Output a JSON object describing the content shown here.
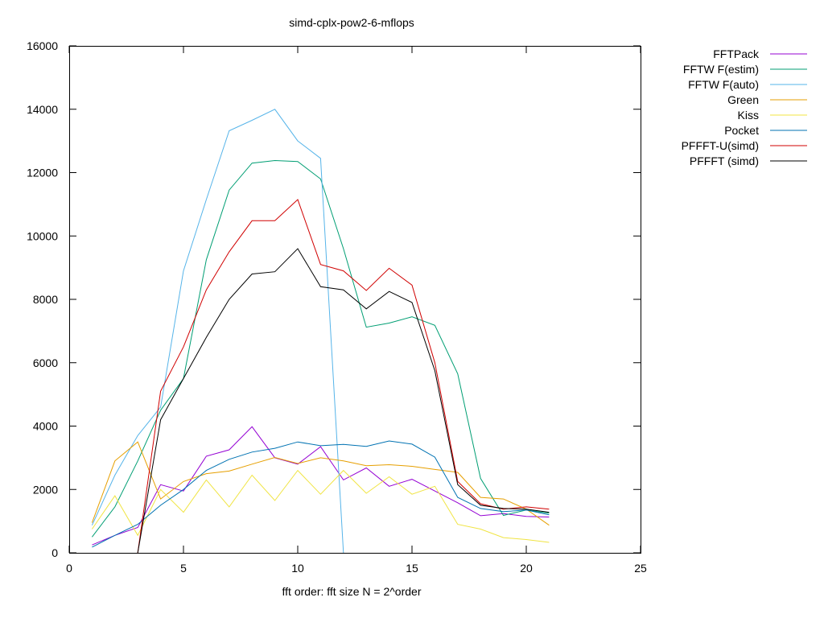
{
  "chart_data": {
    "type": "line",
    "title": "simd-cplx-pow2-6-mflops",
    "xlabel": "fft order: fft size N = 2^order",
    "ylabel": "",
    "xlim": [
      0,
      25
    ],
    "ylim": [
      0,
      16000
    ],
    "xticks": [
      0,
      5,
      10,
      15,
      20,
      25
    ],
    "yticks": [
      0,
      2000,
      4000,
      6000,
      8000,
      10000,
      12000,
      14000,
      16000
    ],
    "grid": false,
    "legend_position": "top-right-outside",
    "series": [
      {
        "name": "FFTPack",
        "color": "#9400d3",
        "x": [
          1,
          2,
          3,
          4,
          5,
          6,
          7,
          8,
          9,
          10,
          11,
          12,
          13,
          14,
          15,
          16,
          17,
          18,
          19,
          20,
          21
        ],
        "y": [
          250,
          550,
          800,
          2150,
          1950,
          3050,
          3250,
          3980,
          3000,
          2800,
          3350,
          2300,
          2680,
          2100,
          2320,
          1950,
          1580,
          1170,
          1240,
          1150,
          1130
        ]
      },
      {
        "name": "FFTW F(estim)",
        "color": "#009e73",
        "x": [
          1,
          2,
          3,
          4,
          5,
          6,
          7,
          8,
          9,
          10,
          11,
          12,
          13,
          14,
          15,
          16,
          17,
          18,
          19,
          20,
          21
        ],
        "y": [
          500,
          1450,
          2900,
          4500,
          5500,
          9250,
          11450,
          12300,
          12380,
          12350,
          11800,
          9600,
          7120,
          7250,
          7450,
          7180,
          5650,
          2350,
          1180,
          1350,
          1250
        ]
      },
      {
        "name": "FFTW F(auto)",
        "color": "#56b4e9",
        "x": [
          1,
          2,
          3,
          4,
          5,
          6,
          7,
          8,
          9,
          10,
          11,
          12
        ],
        "y": [
          870,
          2450,
          3700,
          4600,
          8900,
          11150,
          13320,
          13650,
          14000,
          13000,
          12450,
          0
        ]
      },
      {
        "name": "Green",
        "color": "#e69f00",
        "x": [
          1,
          2,
          3,
          4,
          5,
          6,
          7,
          8,
          9,
          10,
          11,
          12,
          13,
          14,
          15,
          16,
          17,
          18,
          19,
          20,
          21
        ],
        "y": [
          950,
          2900,
          3500,
          1700,
          2250,
          2500,
          2580,
          2800,
          3010,
          2820,
          3000,
          2900,
          2750,
          2780,
          2730,
          2630,
          2540,
          1750,
          1700,
          1380,
          870
        ]
      },
      {
        "name": "Kiss",
        "color": "#f0e442",
        "x": [
          1,
          2,
          3,
          4,
          5,
          6,
          7,
          8,
          9,
          10,
          11,
          12,
          13,
          14,
          15,
          16,
          17,
          18,
          19,
          20,
          21
        ],
        "y": [
          750,
          1800,
          550,
          2000,
          1280,
          2300,
          1450,
          2450,
          1650,
          2600,
          1850,
          2600,
          1880,
          2400,
          1850,
          2100,
          900,
          750,
          480,
          420,
          330
        ]
      },
      {
        "name": "Pocket",
        "color": "#0072b2",
        "x": [
          1,
          2,
          3,
          4,
          5,
          6,
          7,
          8,
          9,
          10,
          11,
          12,
          13,
          14,
          15,
          16,
          17,
          18,
          19,
          20,
          21
        ],
        "y": [
          180,
          550,
          900,
          1500,
          2000,
          2600,
          2950,
          3180,
          3300,
          3500,
          3380,
          3420,
          3360,
          3530,
          3430,
          3020,
          1750,
          1400,
          1300,
          1350,
          1200
        ]
      },
      {
        "name": "PFFFT-U(simd)",
        "color": "#d00000",
        "x": [
          3,
          4,
          5,
          6,
          7,
          8,
          9,
          10,
          11,
          12,
          13,
          14,
          15,
          16,
          17,
          18,
          19,
          20,
          21
        ],
        "y": [
          0,
          5100,
          6500,
          8300,
          9500,
          10480,
          10480,
          11150,
          9100,
          8900,
          8280,
          8980,
          8450,
          6000,
          2250,
          1550,
          1380,
          1450,
          1380
        ]
      },
      {
        "name": "PFFFT (simd)",
        "color": "#000000",
        "x": [
          3,
          4,
          5,
          6,
          7,
          8,
          9,
          10,
          11,
          12,
          13,
          14,
          15,
          16,
          17,
          18,
          19,
          20,
          21
        ],
        "y": [
          0,
          4200,
          5500,
          6800,
          8000,
          8800,
          8870,
          9600,
          8400,
          8300,
          7700,
          8250,
          7900,
          5750,
          2150,
          1500,
          1400,
          1380,
          1280
        ]
      }
    ]
  }
}
